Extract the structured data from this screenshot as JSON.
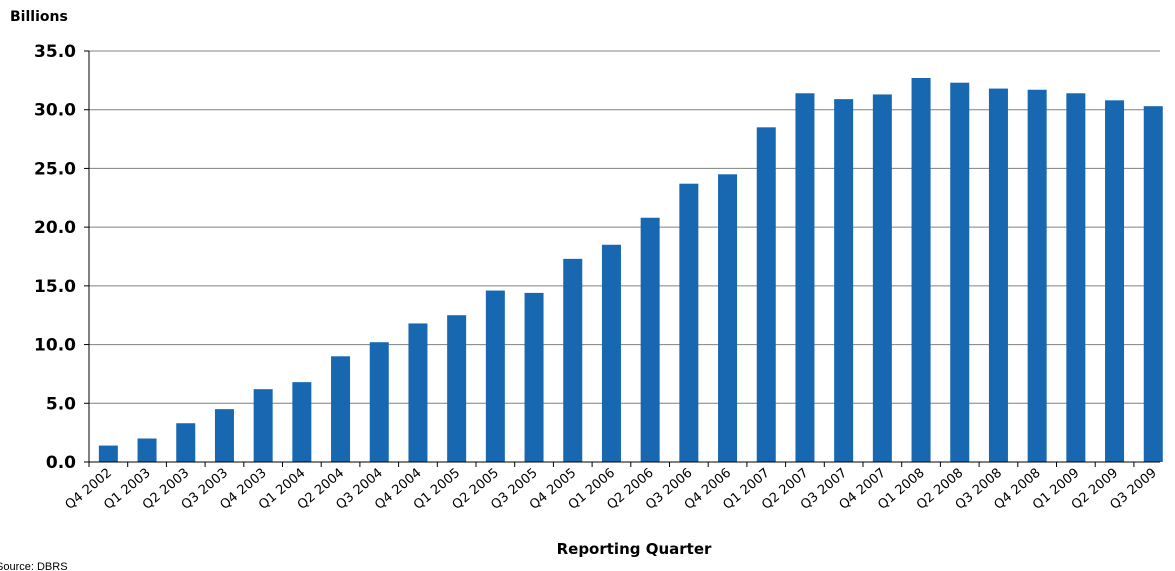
{
  "chart_data": {
    "type": "bar",
    "ylabel": "Billions",
    "xlabel": "Reporting Quarter",
    "source": "Source: DBRS",
    "ylim": [
      0,
      35
    ],
    "ytick_labels": [
      "0.0",
      "5.0",
      "10.0",
      "15.0",
      "20.0",
      "25.0",
      "30.0",
      "35.0"
    ],
    "grid": true,
    "bar_color": "#1767b1",
    "categories": [
      "Q4 2002",
      "Q1 2003",
      "Q2 2003",
      "Q3 2003",
      "Q4 2003",
      "Q1 2004",
      "Q2 2004",
      "Q3 2004",
      "Q4 2004",
      "Q1 2005",
      "Q2 2005",
      "Q3 2005",
      "Q4 2005",
      "Q1 2006",
      "Q2 2006",
      "Q3 2006",
      "Q4 2006",
      "Q1 2007",
      "Q2 2007",
      "Q3 2007",
      "Q4 2007",
      "Q1 2008",
      "Q2 2008",
      "Q3 2008",
      "Q4 2008",
      "Q1 2009",
      "Q2 2009",
      "Q3 2009"
    ],
    "values": [
      1.4,
      2.0,
      3.3,
      4.5,
      6.2,
      6.8,
      9.0,
      10.2,
      11.8,
      12.5,
      14.6,
      14.4,
      17.3,
      18.5,
      20.8,
      23.7,
      24.5,
      28.5,
      31.4,
      30.9,
      31.3,
      32.7,
      32.3,
      31.8,
      31.7,
      31.4,
      30.8,
      30.3
    ]
  }
}
